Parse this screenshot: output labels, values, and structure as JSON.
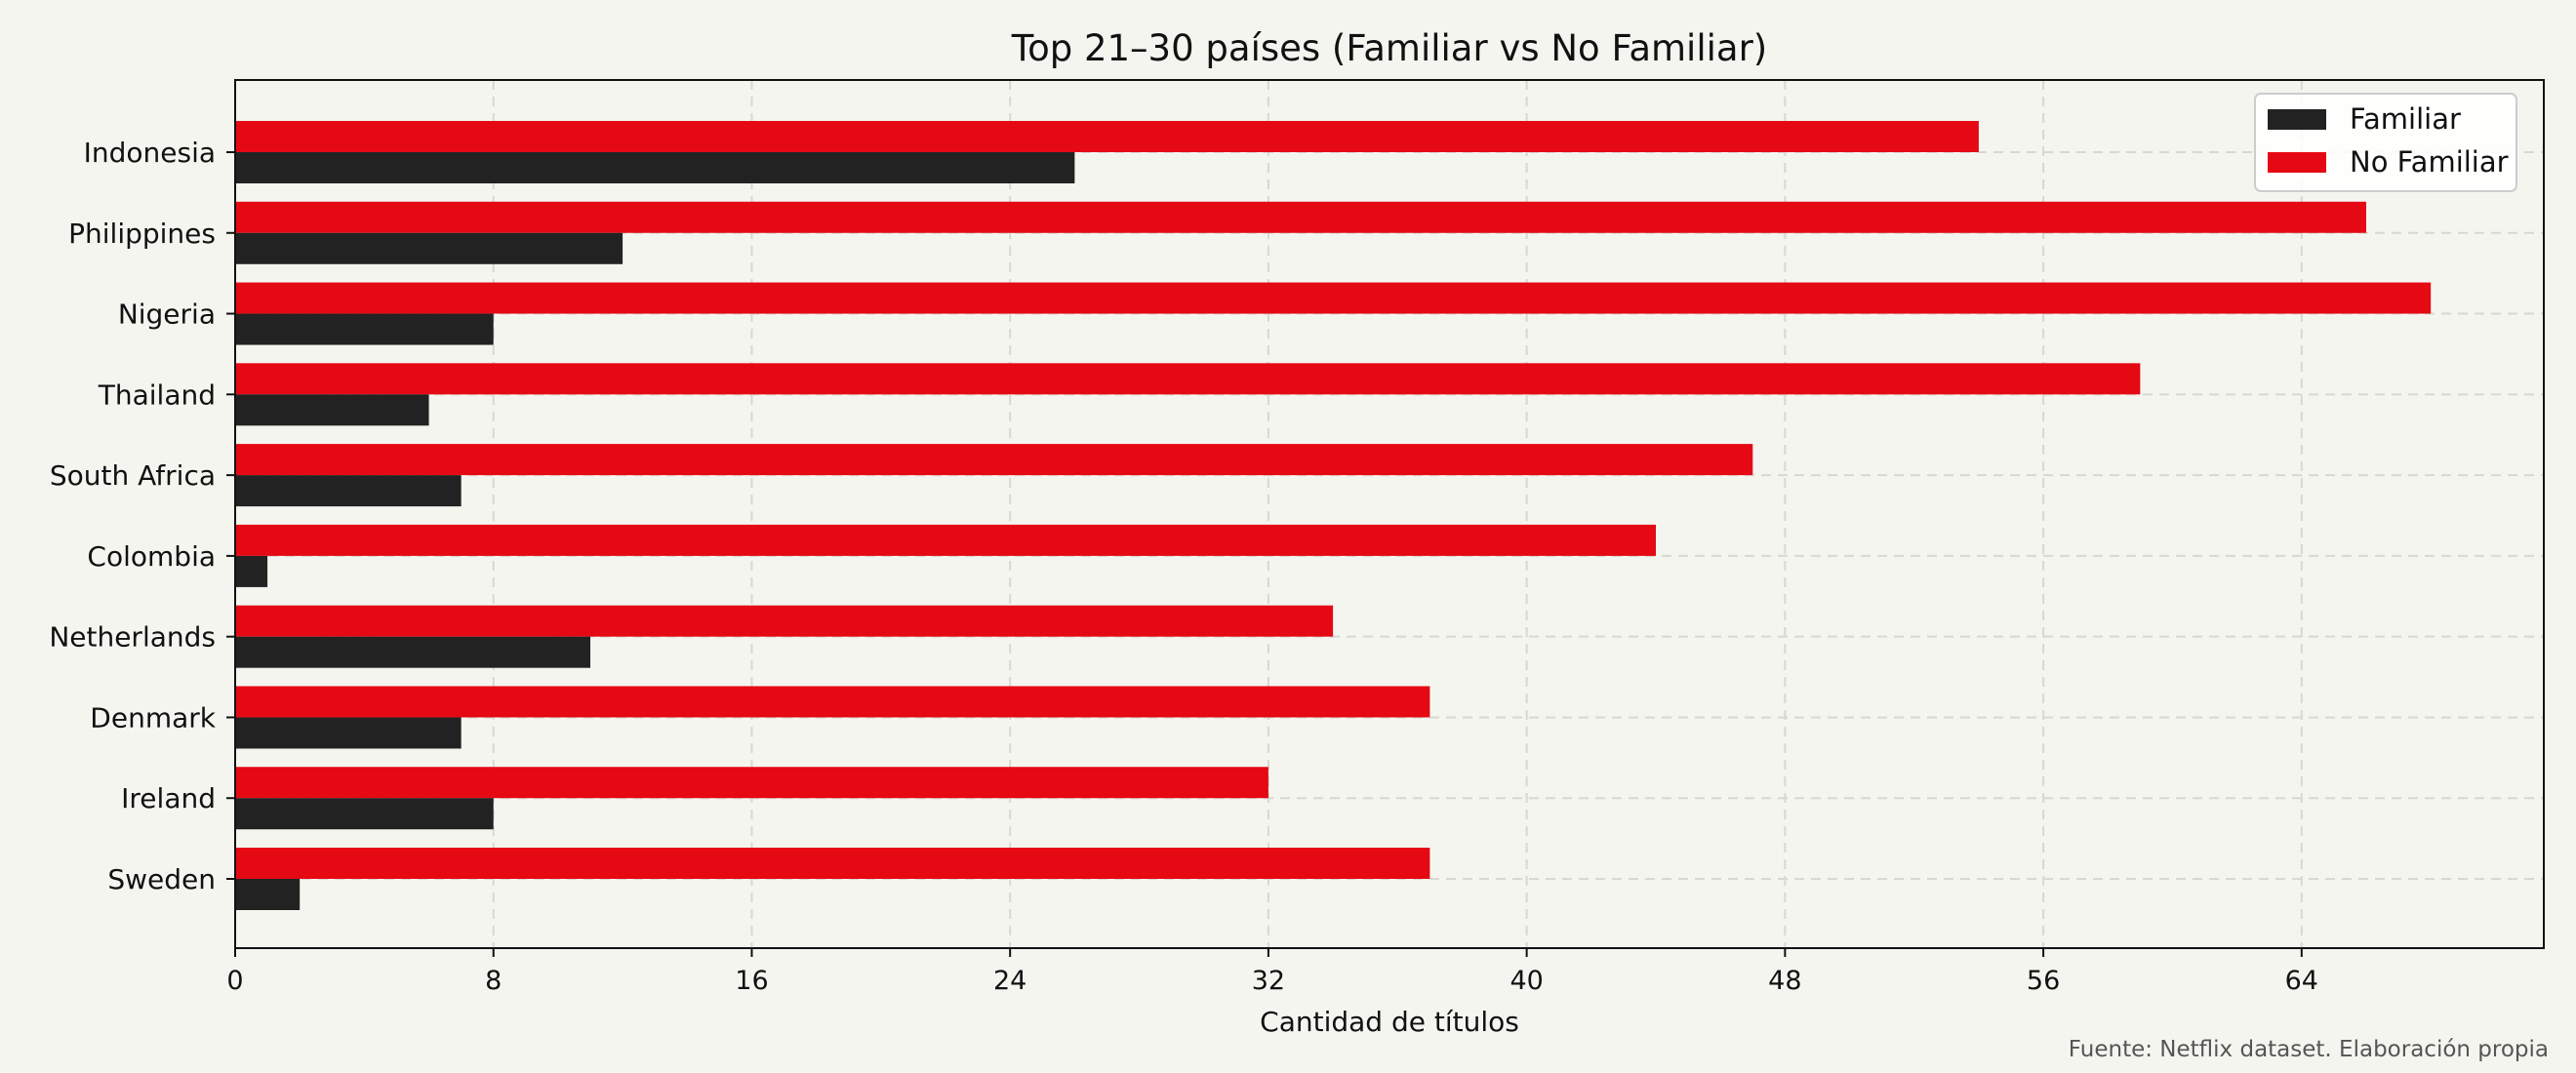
{
  "chart_data": {
    "type": "bar",
    "orientation": "horizontal",
    "title": "Top 21–30 países (Familiar vs No Familiar)",
    "xlabel": "Cantidad de títulos",
    "ylabel": "",
    "xlim": [
      0,
      71.5
    ],
    "xticks": [
      0,
      8,
      16,
      24,
      32,
      40,
      48,
      56,
      64
    ],
    "grid": true,
    "legend_position": "top-right",
    "categories": [
      "Indonesia",
      "Philippines",
      "Nigeria",
      "Thailand",
      "South Africa",
      "Colombia",
      "Netherlands",
      "Denmark",
      "Ireland",
      "Sweden"
    ],
    "series": [
      {
        "name": "Familiar",
        "color": "#222222",
        "values": [
          26,
          12,
          8,
          6,
          7,
          1,
          11,
          7,
          8,
          2
        ]
      },
      {
        "name": "No Familiar",
        "color": "#e50914",
        "values": [
          54,
          66,
          68,
          59,
          47,
          44,
          34,
          37,
          32,
          37
        ]
      }
    ],
    "source_note": "Fuente: Netflix dataset. Elaboración propia"
  }
}
